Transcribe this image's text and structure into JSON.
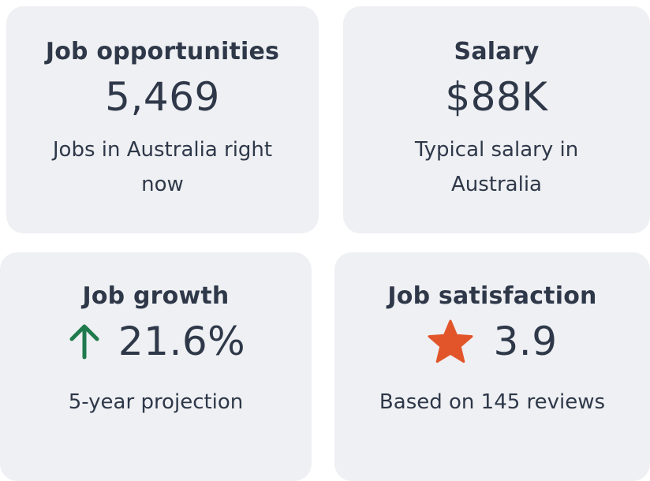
{
  "cards": {
    "opportunities": {
      "title": "Job opportunities",
      "value": "5,469",
      "caption": "Jobs in Australia right now"
    },
    "salary": {
      "title": "Salary",
      "value": "$88K",
      "caption": "Typical salary in Australia"
    },
    "growth": {
      "title": "Job growth",
      "value": "21.6%",
      "caption": "5-year projection",
      "icon": "arrow-up-icon",
      "icon_color": "#1f7a4d"
    },
    "satisfaction": {
      "title": "Job satisfaction",
      "value": "3.9",
      "caption": "Based on 145 reviews",
      "icon": "star-icon",
      "icon_color": "#e2552b"
    }
  },
  "colors": {
    "card_background": "#eff0f3",
    "text": "#2e3849"
  }
}
